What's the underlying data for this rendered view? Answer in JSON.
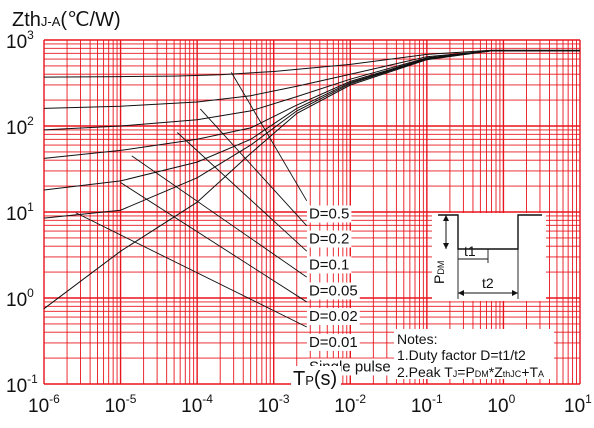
{
  "chart_data": {
    "type": "line",
    "ylabel": "Zth",
    "ylabel_sub": "J-A",
    "ylabel_unit": "(℃/W)",
    "xlabel": "T",
    "xlabel_sub": "P",
    "xlabel_unit": "(s)",
    "x_scale": "log",
    "y_scale": "log",
    "xlim": [
      1e-06,
      10
    ],
    "ylim": [
      0.1,
      1000
    ],
    "grid": true,
    "grid_color": "#e8141c",
    "line_color": "#111111",
    "x_ticks": [
      {
        "base": "10",
        "exp": "-6"
      },
      {
        "base": "10",
        "exp": "-5"
      },
      {
        "base": "10",
        "exp": "-4"
      },
      {
        "base": "10",
        "exp": "-3"
      },
      {
        "base": "10",
        "exp": "-2"
      },
      {
        "base": "10",
        "exp": "-1"
      },
      {
        "base": "10",
        "exp": "0"
      },
      {
        "base": "10",
        "exp": "1"
      }
    ],
    "y_ticks": [
      {
        "base": "10",
        "exp": "-1"
      },
      {
        "base": "10",
        "exp": "0"
      },
      {
        "base": "10",
        "exp": "1"
      },
      {
        "base": "10",
        "exp": "2"
      },
      {
        "base": "10",
        "exp": "3"
      }
    ],
    "series": [
      {
        "name": "D=0.5",
        "points": [
          [
            1e-06,
            370
          ],
          [
            1e-05,
            375
          ],
          [
            5e-05,
            380
          ],
          [
            0.0002,
            395
          ],
          [
            0.001,
            430
          ],
          [
            0.01,
            520
          ],
          [
            0.1,
            680
          ],
          [
            0.7,
            760
          ],
          [
            10,
            760
          ]
        ],
        "label_at": [
          0.0027,
          0.53
        ]
      },
      {
        "name": "D=0.2",
        "points": [
          [
            1e-06,
            160
          ],
          [
            1e-05,
            170
          ],
          [
            0.0001,
            190
          ],
          [
            0.0005,
            225
          ],
          [
            0.002,
            290
          ],
          [
            0.01,
            400
          ],
          [
            0.1,
            640
          ],
          [
            0.7,
            750
          ],
          [
            10,
            750
          ]
        ],
        "label_at": [
          0.0027,
          0.53
        ]
      },
      {
        "name": "D=0.1",
        "points": [
          [
            1e-06,
            90
          ],
          [
            1e-05,
            100
          ],
          [
            0.0001,
            118
          ],
          [
            0.0005,
            150
          ],
          [
            0.002,
            220
          ],
          [
            0.01,
            350
          ],
          [
            0.1,
            620
          ],
          [
            0.7,
            750
          ],
          [
            10,
            750
          ]
        ],
        "label_at": [
          0.0027,
          0.53
        ]
      },
      {
        "name": "D=0.05",
        "points": [
          [
            1e-06,
            42
          ],
          [
            1e-05,
            52
          ],
          [
            0.0001,
            70
          ],
          [
            0.0005,
            95
          ],
          [
            0.002,
            175
          ],
          [
            0.01,
            330
          ],
          [
            0.1,
            610
          ],
          [
            0.7,
            750
          ],
          [
            10,
            750
          ]
        ],
        "label_at": [
          0.0027,
          0.53
        ]
      },
      {
        "name": "D=0.02",
        "points": [
          [
            1e-06,
            18
          ],
          [
            1e-05,
            23
          ],
          [
            0.0001,
            38
          ],
          [
            0.0005,
            70
          ],
          [
            0.002,
            160
          ],
          [
            0.01,
            320
          ],
          [
            0.1,
            600
          ],
          [
            0.7,
            750
          ],
          [
            10,
            750
          ]
        ],
        "label_at": [
          0.0027,
          0.53
        ]
      },
      {
        "name": "D=0.01",
        "points": [
          [
            1e-06,
            8.5
          ],
          [
            1e-05,
            10.5
          ],
          [
            0.0001,
            25
          ],
          [
            0.0005,
            60
          ],
          [
            0.002,
            150
          ],
          [
            0.01,
            310
          ],
          [
            0.1,
            600
          ],
          [
            0.7,
            750
          ],
          [
            10,
            750
          ]
        ],
        "label_at": [
          0.0027,
          0.53
        ]
      },
      {
        "name": "Single pulse",
        "points": [
          [
            1e-06,
            0.75
          ],
          [
            1e-05,
            3.5
          ],
          [
            0.0001,
            13
          ],
          [
            0.0005,
            48
          ],
          [
            0.002,
            140
          ],
          [
            0.01,
            300
          ],
          [
            0.1,
            590
          ],
          [
            0.7,
            750
          ],
          [
            10,
            750
          ]
        ],
        "label_at": [
          0.0027,
          0.53
        ]
      }
    ],
    "leaders": [
      {
        "from": [
          0.00028,
          420
        ],
        "to": [
          0.0027,
          13.5
        ]
      },
      {
        "from": [
          0.00011,
          158
        ],
        "to": [
          0.0027,
          6.9
        ]
      },
      {
        "from": [
          5.5e-05,
          84
        ],
        "to": [
          0.0027,
          3.5
        ]
      },
      {
        "from": [
          1.4e-05,
          45
        ],
        "to": [
          0.0027,
          1.75
        ]
      },
      {
        "from": [
          1e-05,
          22
        ],
        "to": [
          0.0027,
          0.9
        ]
      },
      {
        "from": [
          2.6e-06,
          9.8
        ],
        "to": [
          0.0027,
          0.46
        ]
      }
    ],
    "labels": [
      {
        "text": "D=0.5",
        "at": [
          0.0028,
          8.4
        ]
      },
      {
        "text": "D=0.2",
        "at": [
          0.0028,
          4.3
        ]
      },
      {
        "text": "D=0.1",
        "at": [
          0.0028,
          2.15
        ]
      },
      {
        "text": "D=0.05",
        "at": [
          0.0028,
          1.07
        ]
      },
      {
        "text": "D=0.02",
        "at": [
          0.0028,
          0.54
        ]
      },
      {
        "text": "D=0.01",
        "at": [
          0.0028,
          0.27
        ]
      },
      {
        "text": "Single pulse",
        "at": [
          0.0028,
          0.14
        ]
      }
    ],
    "notes": {
      "title": "Notes:",
      "line1": "1.Duty factor D=t1/t2",
      "line2_prefix": "2.Peak T",
      "line2_sub1": "J",
      "line2_mid": "=P",
      "line2_sub2": "DM",
      "line2_mid2": "*Z",
      "line2_sub3": "thJC",
      "line2_mid3": "+T",
      "line2_sub4": "A"
    },
    "inset": {
      "pdm_label": "P",
      "pdm_sub": "DM",
      "t1_label": "t1",
      "t2_label": "t2"
    }
  }
}
